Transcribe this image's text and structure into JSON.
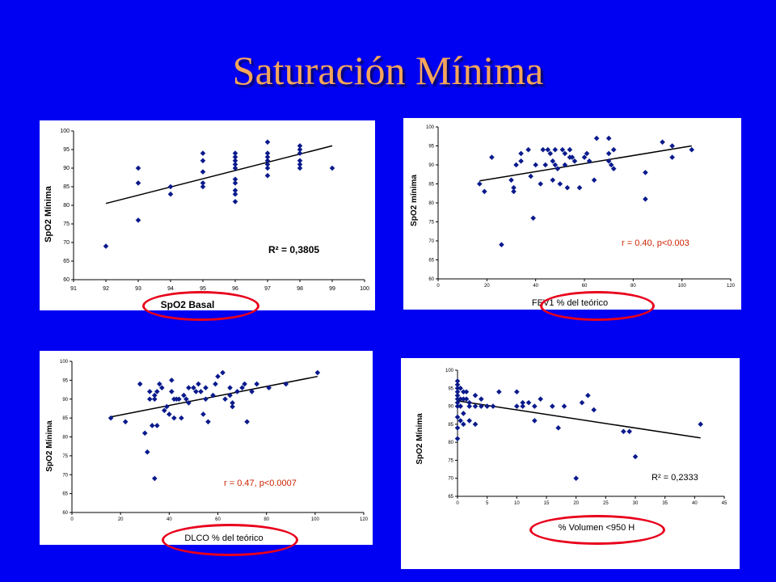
{
  "slide": {
    "title": "Saturación Mínima"
  },
  "colors": {
    "background": "#0000f2",
    "title": "#f5a55c",
    "marker": "#0a1a8c",
    "ellipse": "#e8001c",
    "stat_text": "#cc2200"
  },
  "chart_data": [
    {
      "type": "scatter",
      "ylabel": "SpO2 Mínima",
      "xlabel": "SpO2 Basal",
      "xlim": [
        91,
        100
      ],
      "ylim": [
        60,
        100
      ],
      "xticks": [
        91,
        92,
        93,
        94,
        95,
        96,
        97,
        98,
        99,
        100
      ],
      "yticks": [
        60,
        65,
        70,
        75,
        80,
        85,
        90,
        95,
        100
      ],
      "annotation": "R² = 0,3805",
      "trendline": [
        [
          92,
          80.5
        ],
        [
          99,
          96
        ]
      ],
      "points": [
        [
          92,
          69
        ],
        [
          93,
          90
        ],
        [
          93,
          86
        ],
        [
          93,
          76
        ],
        [
          94,
          85
        ],
        [
          94,
          83
        ],
        [
          95,
          94
        ],
        [
          95,
          92
        ],
        [
          95,
          89
        ],
        [
          95,
          86
        ],
        [
          95,
          85
        ],
        [
          96,
          94
        ],
        [
          96,
          93
        ],
        [
          96,
          92
        ],
        [
          96,
          91
        ],
        [
          96,
          90
        ],
        [
          96,
          87
        ],
        [
          96,
          86
        ],
        [
          96,
          84
        ],
        [
          96,
          83
        ],
        [
          96,
          81
        ],
        [
          97,
          97
        ],
        [
          97,
          94
        ],
        [
          97,
          93
        ],
        [
          97,
          92
        ],
        [
          97,
          91
        ],
        [
          97,
          90
        ],
        [
          97,
          88
        ],
        [
          98,
          96
        ],
        [
          98,
          95
        ],
        [
          98,
          94
        ],
        [
          98,
          92
        ],
        [
          98,
          91
        ],
        [
          98,
          90
        ],
        [
          99,
          90
        ]
      ]
    },
    {
      "type": "scatter",
      "ylabel": "SpO2 mínima",
      "xlabel": "FEV1 % del teórico",
      "xlim": [
        0,
        120
      ],
      "ylim": [
        60,
        100
      ],
      "xticks": [
        0,
        20,
        40,
        60,
        80,
        100,
        120
      ],
      "yticks": [
        60,
        65,
        70,
        75,
        80,
        85,
        90,
        95,
        100
      ],
      "annotation": "r = 0.40,  p<0.003",
      "trendline": [
        [
          17,
          85.8
        ],
        [
          104,
          95
        ]
      ],
      "points": [
        [
          17,
          85
        ],
        [
          19,
          83
        ],
        [
          22,
          92
        ],
        [
          26,
          69
        ],
        [
          30,
          86
        ],
        [
          31,
          84
        ],
        [
          31,
          83
        ],
        [
          32,
          90
        ],
        [
          34,
          91
        ],
        [
          34,
          93
        ],
        [
          37,
          94
        ],
        [
          38,
          87
        ],
        [
          39,
          76
        ],
        [
          40,
          90
        ],
        [
          42,
          85
        ],
        [
          43,
          94
        ],
        [
          44,
          90
        ],
        [
          45,
          94
        ],
        [
          46,
          93
        ],
        [
          47,
          91
        ],
        [
          47,
          86
        ],
        [
          48,
          94
        ],
        [
          48,
          90
        ],
        [
          49,
          89
        ],
        [
          50,
          85
        ],
        [
          51,
          94
        ],
        [
          52,
          93
        ],
        [
          52,
          90
        ],
        [
          53,
          84
        ],
        [
          54,
          94
        ],
        [
          54,
          92
        ],
        [
          55,
          92
        ],
        [
          56,
          91
        ],
        [
          58,
          84
        ],
        [
          60,
          92
        ],
        [
          61,
          93
        ],
        [
          62,
          91
        ],
        [
          64,
          86
        ],
        [
          65,
          97
        ],
        [
          70,
          97
        ],
        [
          70,
          93
        ],
        [
          70,
          91
        ],
        [
          71,
          90
        ],
        [
          72,
          89
        ],
        [
          72,
          94
        ],
        [
          85,
          81
        ],
        [
          85,
          88
        ],
        [
          92,
          96
        ],
        [
          96,
          95
        ],
        [
          96,
          92
        ],
        [
          104,
          94
        ]
      ]
    },
    {
      "type": "scatter",
      "ylabel": "SpO2 Mínima",
      "xlabel": "DLCO % del teórico",
      "xlim": [
        0,
        120
      ],
      "ylim": [
        60,
        100
      ],
      "xticks": [
        0,
        20,
        40,
        60,
        80,
        100,
        120
      ],
      "yticks": [
        60,
        65,
        70,
        75,
        80,
        85,
        90,
        95,
        100
      ],
      "annotation": "r = 0.47,  p<0.0007",
      "trendline": [
        [
          16,
          85.3
        ],
        [
          101,
          96
        ]
      ],
      "points": [
        [
          16,
          85
        ],
        [
          22,
          84
        ],
        [
          28,
          94
        ],
        [
          30,
          81
        ],
        [
          31,
          76
        ],
        [
          32,
          92
        ],
        [
          32,
          90
        ],
        [
          33,
          83
        ],
        [
          34,
          69
        ],
        [
          34,
          91
        ],
        [
          34,
          90
        ],
        [
          35,
          92
        ],
        [
          35,
          83
        ],
        [
          36,
          94
        ],
        [
          37,
          93
        ],
        [
          38,
          87
        ],
        [
          39,
          88
        ],
        [
          40,
          86
        ],
        [
          41,
          92
        ],
        [
          41,
          95
        ],
        [
          42,
          90
        ],
        [
          42,
          85
        ],
        [
          43,
          90
        ],
        [
          44,
          90
        ],
        [
          45,
          85
        ],
        [
          46,
          91
        ],
        [
          47,
          90
        ],
        [
          48,
          93
        ],
        [
          48,
          89
        ],
        [
          50,
          93
        ],
        [
          51,
          92
        ],
        [
          52,
          94
        ],
        [
          53,
          92
        ],
        [
          54,
          86
        ],
        [
          55,
          93
        ],
        [
          55,
          90
        ],
        [
          56,
          84
        ],
        [
          58,
          91
        ],
        [
          59,
          94
        ],
        [
          60,
          96
        ],
        [
          62,
          97
        ],
        [
          63,
          90
        ],
        [
          65,
          93
        ],
        [
          65,
          91
        ],
        [
          66,
          88
        ],
        [
          66,
          89
        ],
        [
          68,
          92
        ],
        [
          70,
          93
        ],
        [
          71,
          94
        ],
        [
          72,
          84
        ],
        [
          74,
          92
        ],
        [
          76,
          94
        ],
        [
          81,
          93
        ],
        [
          88,
          94
        ],
        [
          101,
          97
        ]
      ]
    },
    {
      "type": "scatter",
      "ylabel": "SpO2 Mínima",
      "xlabel": "% Volumen <950 H",
      "xlim": [
        0,
        45
      ],
      "ylim": [
        65,
        100
      ],
      "xticks": [
        0,
        5,
        10,
        15,
        20,
        25,
        30,
        35,
        40,
        45
      ],
      "yticks": [
        65,
        70,
        75,
        80,
        85,
        90,
        95,
        100
      ],
      "annotation": "R² = 0,2333",
      "trendline": [
        [
          0,
          91.5
        ],
        [
          41,
          81.2
        ]
      ],
      "points": [
        [
          0,
          97
        ],
        [
          0,
          96
        ],
        [
          0,
          95
        ],
        [
          0,
          94
        ],
        [
          0,
          93
        ],
        [
          0,
          92
        ],
        [
          0,
          91
        ],
        [
          0,
          90
        ],
        [
          0,
          87
        ],
        [
          0,
          84
        ],
        [
          0,
          81
        ],
        [
          0.5,
          95
        ],
        [
          0.5,
          92
        ],
        [
          0.5,
          90
        ],
        [
          0.5,
          86
        ],
        [
          1,
          94
        ],
        [
          1,
          92
        ],
        [
          1,
          88
        ],
        [
          1,
          85
        ],
        [
          1.5,
          94
        ],
        [
          1.5,
          92
        ],
        [
          2,
          91
        ],
        [
          2,
          90
        ],
        [
          2,
          86
        ],
        [
          3,
          93
        ],
        [
          3,
          90
        ],
        [
          3,
          85
        ],
        [
          4,
          92
        ],
        [
          4,
          90
        ],
        [
          5,
          90
        ],
        [
          6,
          90
        ],
        [
          7,
          94
        ],
        [
          10,
          94
        ],
        [
          10,
          90
        ],
        [
          11,
          91
        ],
        [
          11,
          90
        ],
        [
          12,
          91
        ],
        [
          13,
          86
        ],
        [
          13,
          90
        ],
        [
          14,
          92
        ],
        [
          16,
          90
        ],
        [
          17,
          84
        ],
        [
          18,
          90
        ],
        [
          20,
          70
        ],
        [
          21,
          91
        ],
        [
          22,
          93
        ],
        [
          23,
          89
        ],
        [
          28,
          83
        ],
        [
          29,
          83
        ],
        [
          30,
          76
        ],
        [
          41,
          85
        ]
      ]
    }
  ]
}
